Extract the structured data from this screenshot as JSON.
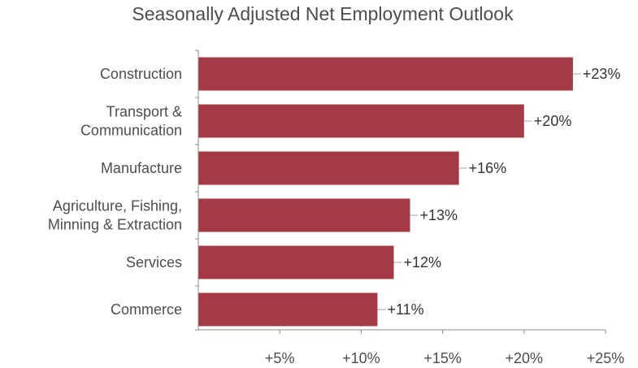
{
  "chart_data": {
    "type": "bar",
    "orientation": "horizontal",
    "title": "Seasonally Adjusted Net Employment Outlook",
    "xlabel": "",
    "ylabel": "",
    "categories": [
      [
        "Construction"
      ],
      [
        "Transport &",
        "Communication"
      ],
      [
        "Manufacture"
      ],
      [
        "Agriculture, Fishing,",
        "Minning & Extraction"
      ],
      [
        "Services"
      ],
      [
        "Commerce"
      ]
    ],
    "values": [
      23,
      20,
      16,
      13,
      12,
      11
    ],
    "data_labels": [
      "+23%",
      "+20%",
      "+16%",
      "+13%",
      "+12%",
      "+11%"
    ],
    "xlim": [
      0,
      25
    ],
    "xticks": [
      5,
      10,
      15,
      20,
      25
    ],
    "xtick_labels": [
      "+5%",
      "+10%",
      "+15%",
      "+20%",
      "+25%"
    ],
    "bar_color": "#a33a44",
    "grid": false,
    "legend": "none"
  }
}
